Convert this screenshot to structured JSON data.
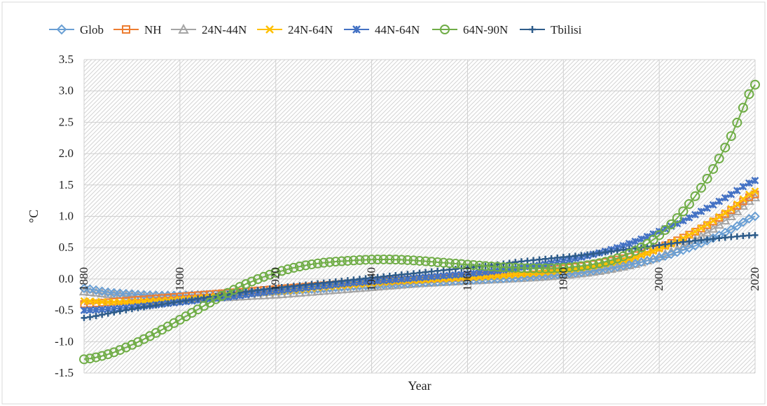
{
  "chart_data": {
    "type": "line",
    "title": "",
    "xlabel": "Year",
    "ylabel": "°C",
    "xlim": [
      1880,
      2020
    ],
    "ylim": [
      -1.5,
      3.5
    ],
    "x_ticks": [
      "1880",
      "1900",
      "1920",
      "1940",
      "1960",
      "1980",
      "2000",
      "2020"
    ],
    "y_ticks": [
      "3.5",
      "3.0",
      "2.5",
      "2.0",
      "1.5",
      "1.0",
      "0.5",
      "0.0",
      "-0.5",
      "-1.0",
      "-1.5"
    ],
    "grid": true,
    "legend_position": "top",
    "x": [
      1880,
      1885,
      1890,
      1895,
      1900,
      1905,
      1910,
      1915,
      1920,
      1925,
      1930,
      1935,
      1940,
      1945,
      1950,
      1955,
      1960,
      1965,
      1970,
      1975,
      1980,
      1985,
      1990,
      1995,
      2000,
      2005,
      2010,
      2015,
      2020
    ],
    "series": [
      {
        "name": "Glob",
        "color": "#6a9fd4",
        "marker": "diamond",
        "values": [
          -0.15,
          -0.21,
          -0.24,
          -0.26,
          -0.26,
          -0.25,
          -0.23,
          -0.21,
          -0.19,
          -0.17,
          -0.15,
          -0.12,
          -0.1,
          -0.08,
          -0.06,
          -0.04,
          -0.02,
          0.0,
          0.02,
          0.05,
          0.08,
          0.12,
          0.18,
          0.25,
          0.34,
          0.46,
          0.61,
          0.79,
          1.0
        ]
      },
      {
        "name": "NH",
        "color": "#ed7d31",
        "marker": "square",
        "values": [
          -0.4,
          -0.37,
          -0.34,
          -0.31,
          -0.28,
          -0.25,
          -0.22,
          -0.19,
          -0.16,
          -0.13,
          -0.1,
          -0.07,
          -0.04,
          -0.02,
          0.0,
          0.02,
          0.04,
          0.07,
          0.1,
          0.13,
          0.17,
          0.22,
          0.29,
          0.38,
          0.5,
          0.66,
          0.86,
          1.1,
          1.35
        ]
      },
      {
        "name": "24N-44N",
        "color": "#a5a5a5",
        "marker": "triangle",
        "values": [
          -0.2,
          -0.24,
          -0.27,
          -0.29,
          -0.3,
          -0.3,
          -0.29,
          -0.27,
          -0.25,
          -0.22,
          -0.19,
          -0.16,
          -0.13,
          -0.1,
          -0.07,
          -0.05,
          -0.03,
          -0.01,
          0.01,
          0.03,
          0.06,
          0.1,
          0.16,
          0.24,
          0.36,
          0.52,
          0.74,
          1.0,
          1.3
        ]
      },
      {
        "name": "24N-64N",
        "color": "#ffc000",
        "marker": "x",
        "values": [
          -0.35,
          -0.37,
          -0.37,
          -0.35,
          -0.33,
          -0.3,
          -0.27,
          -0.24,
          -0.2,
          -0.17,
          -0.13,
          -0.1,
          -0.07,
          -0.04,
          -0.02,
          0.0,
          0.02,
          0.04,
          0.07,
          0.1,
          0.14,
          0.19,
          0.26,
          0.35,
          0.48,
          0.65,
          0.87,
          1.12,
          1.4
        ]
      },
      {
        "name": "44N-64N",
        "color": "#4472c4",
        "marker": "star",
        "values": [
          -0.5,
          -0.48,
          -0.45,
          -0.41,
          -0.37,
          -0.33,
          -0.29,
          -0.24,
          -0.19,
          -0.15,
          -0.11,
          -0.07,
          -0.04,
          -0.01,
          0.02,
          0.05,
          0.08,
          0.12,
          0.17,
          0.22,
          0.29,
          0.37,
          0.47,
          0.6,
          0.76,
          0.93,
          1.13,
          1.35,
          1.57
        ]
      },
      {
        "name": "64N-90N",
        "color": "#70ad47",
        "marker": "circle",
        "values": [
          -1.28,
          -1.2,
          -1.05,
          -0.86,
          -0.65,
          -0.43,
          -0.22,
          -0.04,
          0.1,
          0.2,
          0.26,
          0.29,
          0.31,
          0.31,
          0.29,
          0.26,
          0.23,
          0.2,
          0.18,
          0.17,
          0.18,
          0.22,
          0.3,
          0.45,
          0.7,
          1.08,
          1.6,
          2.28,
          3.1
        ]
      },
      {
        "name": "Tbilisi",
        "color": "#2e5c8a",
        "marker": "plus",
        "values": [
          -0.62,
          -0.55,
          -0.48,
          -0.42,
          -0.36,
          -0.3,
          -0.24,
          -0.19,
          -0.14,
          -0.1,
          -0.06,
          -0.02,
          0.02,
          0.06,
          0.1,
          0.14,
          0.18,
          0.22,
          0.27,
          0.31,
          0.35,
          0.39,
          0.44,
          0.49,
          0.54,
          0.59,
          0.63,
          0.67,
          0.7
        ]
      }
    ]
  }
}
